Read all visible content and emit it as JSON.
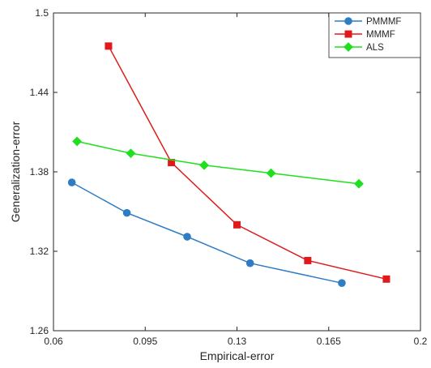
{
  "chart_data": {
    "type": "line",
    "title": "",
    "xlabel": "Empirical-error",
    "ylabel": "Generalization-error",
    "xlim": [
      0.06,
      0.2
    ],
    "ylim": [
      1.26,
      1.5
    ],
    "xticks": [
      "0.06",
      "0.095",
      "0.13",
      "0.165",
      "0.2"
    ],
    "yticks": [
      "1.26",
      "1.32",
      "1.38",
      "1.44",
      "1.5"
    ],
    "grid": false,
    "legend_position": "top-right",
    "series": [
      {
        "name": "PMMMF",
        "color": "#2e7cc4",
        "marker": "circle",
        "x": [
          0.067,
          0.088,
          0.111,
          0.135,
          0.17
        ],
        "y": [
          1.372,
          1.349,
          1.331,
          1.311,
          1.296
        ]
      },
      {
        "name": "MMMF",
        "color": "#e01a1a",
        "marker": "square",
        "x": [
          0.081,
          0.105,
          0.13,
          0.157,
          0.187
        ],
        "y": [
          1.475,
          1.387,
          1.34,
          1.313,
          1.299
        ]
      },
      {
        "name": "ALS",
        "color": "#1ee01e",
        "marker": "diamond",
        "x": [
          0.069,
          0.0895,
          0.1175,
          0.143,
          0.1765
        ],
        "y": [
          1.403,
          1.394,
          1.385,
          1.379,
          1.371
        ]
      }
    ]
  }
}
